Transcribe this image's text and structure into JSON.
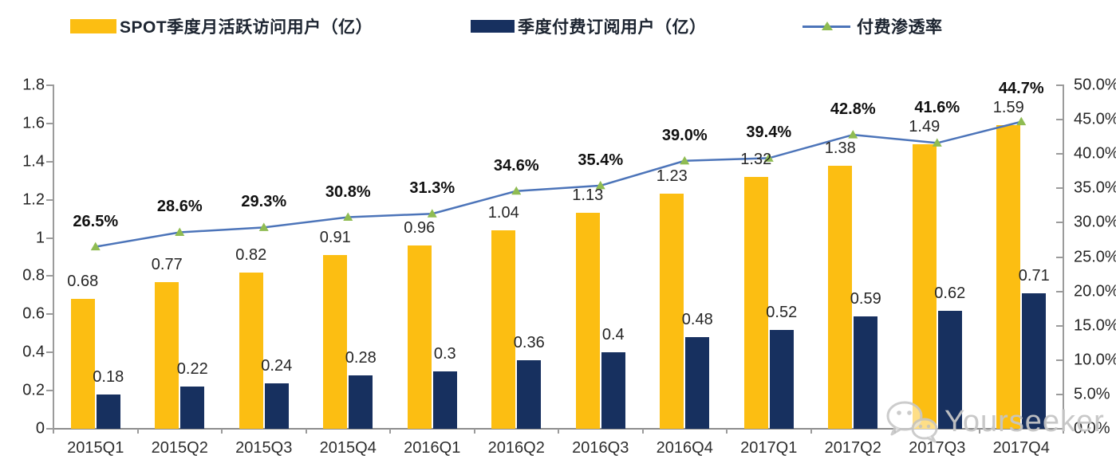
{
  "colors": {
    "mau_bar": "#FCBE12",
    "subs_bar": "#17305F",
    "line": "#4C74B9",
    "marker": "#8FBC52",
    "axis": "#9B9B9B",
    "text": "#262626",
    "watermark": "#C9C9C9"
  },
  "legend": [
    {
      "label": "SPOT季度月活跃访问用户（亿）",
      "type": "bar",
      "color": "#FCBE12"
    },
    {
      "label": "季度付费订阅用户（亿）",
      "type": "bar",
      "color": "#17305F"
    },
    {
      "label": "付费渗透率",
      "type": "line",
      "color": "#4C74B9",
      "marker_color": "#8FBC52"
    }
  ],
  "watermark": {
    "text": "Yourseeker",
    "icon": "wechat-icon"
  },
  "chart_data": {
    "type": "combo",
    "title": "",
    "categories": [
      "2015Q1",
      "2015Q2",
      "2015Q3",
      "2015Q4",
      "2016Q1",
      "2016Q2",
      "2016Q3",
      "2016Q4",
      "2017Q1",
      "2017Q2",
      "2017Q3",
      "2017Q4"
    ],
    "series": [
      {
        "name": "SPOT季度月活跃访问用户（亿）",
        "type": "bar",
        "axis": "left",
        "color": "#FCBE12",
        "values": [
          0.68,
          0.77,
          0.82,
          0.91,
          0.96,
          1.04,
          1.13,
          1.23,
          1.32,
          1.38,
          1.49,
          1.59
        ],
        "labels": [
          "0.68",
          "0.77",
          "0.82",
          "0.91",
          "0.96",
          "1.04",
          "1.13",
          "1.23",
          "1.32",
          "1.38",
          "1.49",
          "1.59"
        ]
      },
      {
        "name": "季度付费订阅用户（亿）",
        "type": "bar",
        "axis": "left",
        "color": "#17305F",
        "values": [
          0.18,
          0.22,
          0.24,
          0.28,
          0.3,
          0.36,
          0.4,
          0.48,
          0.52,
          0.59,
          0.62,
          0.71
        ],
        "labels": [
          "0.18",
          "0.22",
          "0.24",
          "0.28",
          "0.3",
          "0.36",
          "0.4",
          "0.48",
          "0.52",
          "0.59",
          "0.62",
          "0.71"
        ]
      },
      {
        "name": "付费渗透率",
        "type": "line",
        "axis": "right",
        "color": "#4C74B9",
        "marker": "triangle",
        "marker_color": "#8FBC52",
        "values": [
          26.5,
          28.6,
          29.3,
          30.8,
          31.3,
          34.6,
          35.4,
          39.0,
          39.4,
          42.8,
          41.6,
          44.7
        ],
        "labels": [
          "26.5%",
          "28.6%",
          "29.3%",
          "30.8%",
          "31.3%",
          "34.6%",
          "35.4%",
          "39.0%",
          "39.4%",
          "42.8%",
          "41.6%",
          "44.7%"
        ]
      }
    ],
    "left_axis": {
      "min": 0,
      "max": 1.8,
      "step": 0.2,
      "tick_labels": [
        "0",
        "0.2",
        "0.4",
        "0.6",
        "0.8",
        "1",
        "1.2",
        "1.4",
        "1.6",
        "1.8"
      ]
    },
    "right_axis": {
      "min": 0,
      "max": 50,
      "step": 5,
      "tick_labels": [
        "0.0%",
        "5.0%",
        "10.0%",
        "15.0%",
        "20.0%",
        "25.0%",
        "30.0%",
        "35.0%",
        "40.0%",
        "45.0%",
        "50.0%"
      ]
    },
    "grid": false,
    "legend_position": "top"
  }
}
